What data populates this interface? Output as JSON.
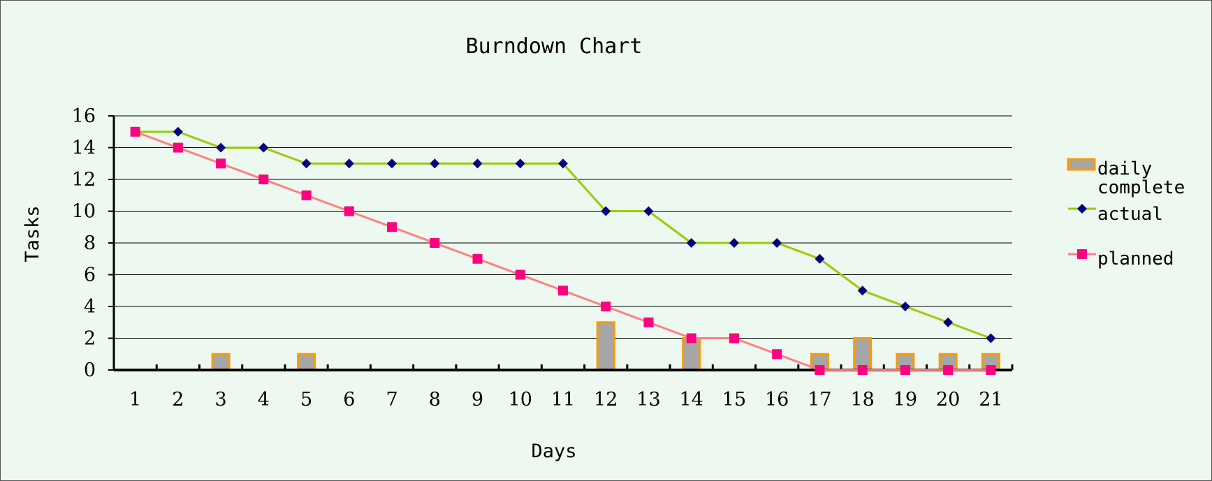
{
  "chart_data": {
    "type": "line",
    "title": "Burndown Chart",
    "xlabel": "Days",
    "ylabel": "Tasks",
    "categories": [
      "1",
      "2",
      "3",
      "4",
      "5",
      "6",
      "7",
      "8",
      "9",
      "10",
      "11",
      "12",
      "13",
      "14",
      "15",
      "16",
      "17",
      "18",
      "19",
      "20",
      "21"
    ],
    "ylim": [
      0,
      16
    ],
    "yticks": [
      0,
      2,
      4,
      6,
      8,
      10,
      12,
      14,
      16
    ],
    "grid": "horizontal",
    "legend_position": "right",
    "series": [
      {
        "name": "daily complete",
        "legend_lines": [
          "daily",
          "complete"
        ],
        "type": "bar",
        "fill": "#a6a6a6",
        "stroke": "#ff9900",
        "values": [
          0,
          0,
          1,
          0,
          1,
          0,
          0,
          0,
          0,
          0,
          0,
          3,
          0,
          2,
          0,
          0,
          1,
          2,
          1,
          1,
          1
        ]
      },
      {
        "name": "actual",
        "legend_lines": [
          "actual"
        ],
        "type": "line",
        "color": "#99cc00",
        "marker": "diamond",
        "marker_color": "#000080",
        "values": [
          15,
          15,
          14,
          14,
          13,
          13,
          13,
          13,
          13,
          13,
          13,
          10,
          10,
          8,
          8,
          8,
          7,
          5,
          4,
          3,
          2
        ]
      },
      {
        "name": "planned",
        "legend_lines": [
          "planned"
        ],
        "type": "line",
        "color": "#ff8080",
        "marker": "square",
        "marker_color": "#ff0080",
        "values": [
          15,
          14,
          13,
          12,
          11,
          10,
          9,
          8,
          7,
          6,
          5,
          4,
          3,
          2,
          2,
          1,
          0,
          0,
          0,
          0,
          0
        ]
      }
    ]
  }
}
